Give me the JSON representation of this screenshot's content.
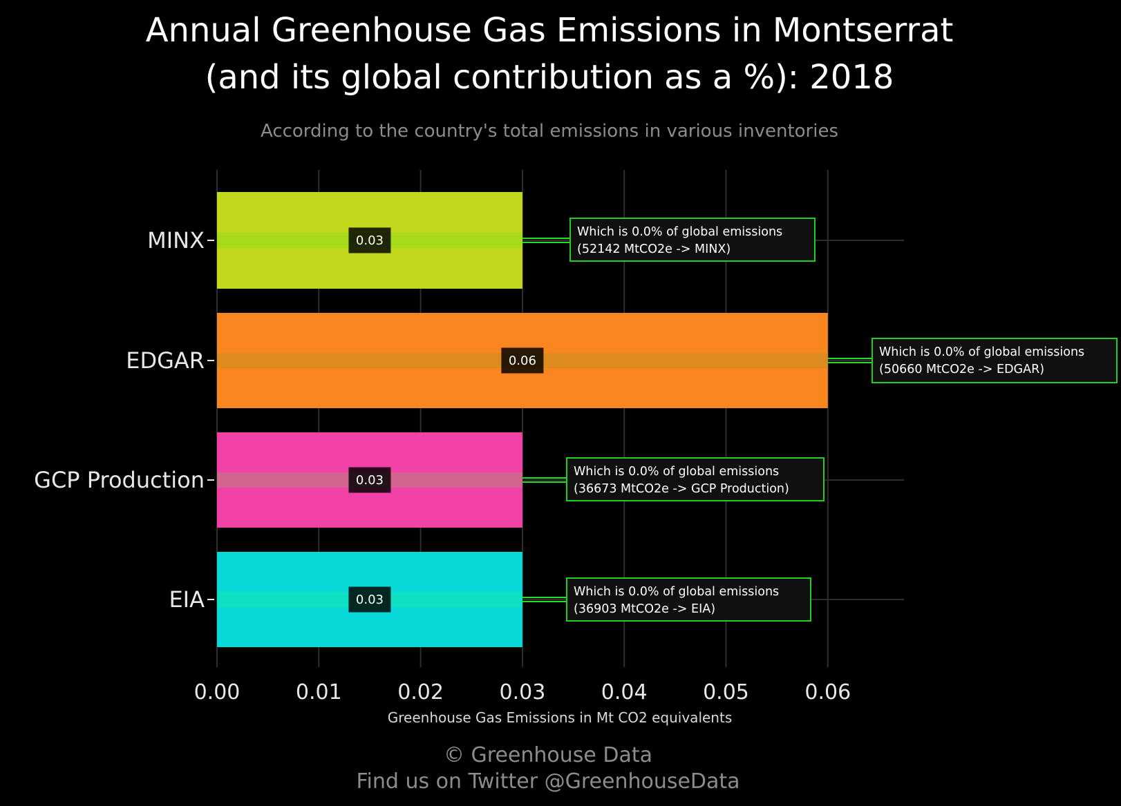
{
  "colors": {
    "background": "#000000",
    "grid": "#2e2e2e",
    "annotation_border": "#1fd01f",
    "annotation_fill": "#101010",
    "connector": "#22e022"
  },
  "chart_data": {
    "type": "bar",
    "orientation": "horizontal",
    "title_line1": "Annual Greenhouse Gas Emissions in Montserrat",
    "title_line2": "(and its global contribution as a %): 2018",
    "subtitle": "According to the country's total emissions in various inventories",
    "xlabel": "Greenhouse Gas Emissions in Mt CO2 equivalents",
    "ylabel": "",
    "xlim": [
      0,
      0.0675
    ],
    "grid": true,
    "x_ticks": [
      "0.00",
      "0.01",
      "0.02",
      "0.03",
      "0.04",
      "0.05",
      "0.06"
    ],
    "x_tick_values": [
      0,
      0.01,
      0.02,
      0.03,
      0.04,
      0.05,
      0.06
    ],
    "categories": [
      "MINX",
      "EDGAR",
      "GCP Production",
      "EIA"
    ],
    "values": [
      0.03,
      0.06,
      0.03,
      0.03
    ],
    "data_labels": [
      "0.03",
      "0.06",
      "0.03",
      "0.03"
    ],
    "bar_colors": [
      "#c2d81c",
      "#f98621",
      "#f241a6",
      "#06d9d8"
    ],
    "stripe_colors": [
      "#a2dc1a",
      "#d88c1e",
      "#cd6c8c",
      "#10e0c0"
    ],
    "annotations": [
      {
        "line1": "Which is 0.0% of global emissions",
        "line2": "(52142 MtCO2e -> MINX)"
      },
      {
        "line1": "Which is 0.0% of global emissions",
        "line2": "(50660 MtCO2e -> EDGAR)"
      },
      {
        "line1": "Which is 0.0% of global emissions",
        "line2": "(36673 MtCO2e -> GCP Production)"
      },
      {
        "line1": "Which is 0.0% of global emissions",
        "line2": "(36903 MtCO2e -> EIA)"
      }
    ]
  },
  "footer": {
    "line1": "© Greenhouse Data",
    "line2": "Find us on Twitter @GreenhouseData"
  }
}
